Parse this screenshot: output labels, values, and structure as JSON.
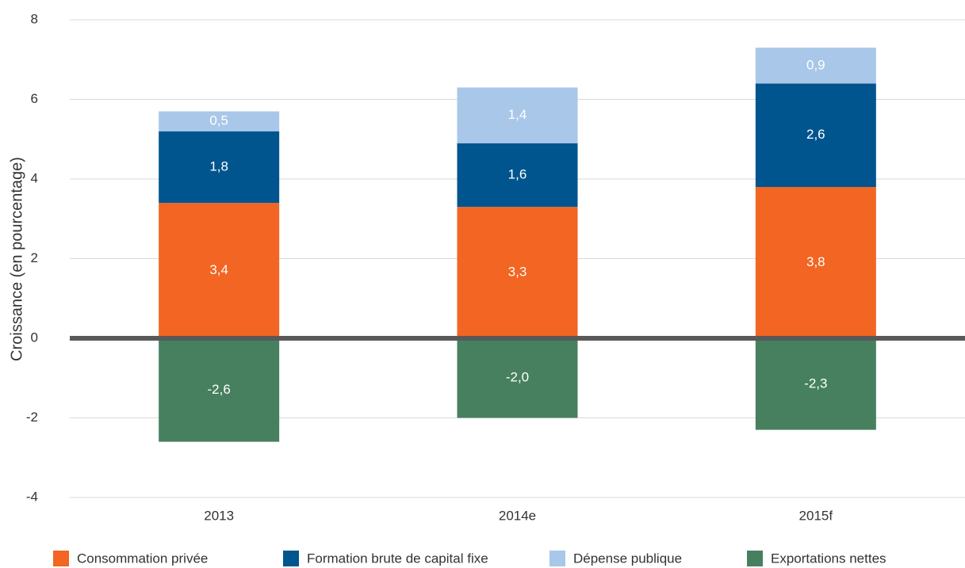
{
  "chart_data": {
    "type": "stacked_bar",
    "y_axis_label": "Croissance (en pourcentage)",
    "categories": [
      "2013",
      "2014e",
      "2015f"
    ],
    "series": [
      {
        "name": "Consommation privée",
        "color": "#f26522",
        "values": [
          3.4,
          3.3,
          3.8
        ],
        "value_labels": [
          "3,4",
          "3,3",
          "3,8"
        ]
      },
      {
        "name": "Formation brute de capital fixe",
        "color": "#00558f",
        "values": [
          1.8,
          1.6,
          2.6
        ],
        "value_labels": [
          "1,8",
          "1,6",
          "2,6"
        ]
      },
      {
        "name": "Dépense publique",
        "color": "#a9c7e8",
        "values": [
          0.5,
          1.4,
          0.9
        ],
        "value_labels": [
          "0,5",
          "1,4",
          "0,9"
        ]
      },
      {
        "name": "Exportations nettes",
        "color": "#47805f",
        "values": [
          -2.6,
          -2.0,
          -2.3
        ],
        "value_labels": [
          "-2,6",
          "-2,0",
          "-2,3"
        ]
      }
    ],
    "ylim": [
      -4,
      8
    ],
    "yticks": [
      -4,
      -2,
      0,
      2,
      4,
      6,
      8
    ],
    "grid": true
  }
}
